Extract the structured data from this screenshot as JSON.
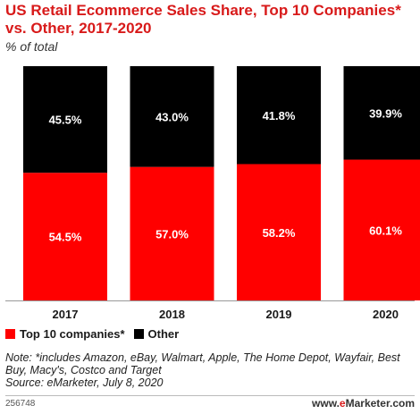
{
  "chart_data": {
    "type": "bar",
    "stacked": true,
    "title": "US Retail Ecommerce Sales Share, Top 10 Companies* vs. Other, 2017-2020",
    "subtitle": "% of total",
    "categories": [
      "2017",
      "2018",
      "2019",
      "2020"
    ],
    "series": [
      {
        "name": "Top 10 companies*",
        "color": "#ff0000",
        "values": [
          54.5,
          57.0,
          58.2,
          60.1
        ],
        "labels": [
          "54.5%",
          "57.0%",
          "58.2%",
          "60.1%"
        ]
      },
      {
        "name": "Other",
        "color": "#000000",
        "values": [
          45.5,
          43.0,
          41.8,
          39.9
        ],
        "labels": [
          "45.5%",
          "43.0%",
          "41.8%",
          "39.9%"
        ]
      }
    ],
    "ylim": [
      0,
      100
    ],
    "grid": false,
    "legend_position": "bottom-left"
  },
  "note": "Note: *includes Amazon, eBay, Walmart, Apple, The Home Depot, Wayfair, Best Buy, Macy's, Costco and Target",
  "source": "Source: eMarketer, July 8, 2020",
  "footer": {
    "id": "256748",
    "brand_prefix": "www.",
    "brand_e": "e",
    "brand_rest": "Marketer",
    "brand_suffix": ".com"
  }
}
